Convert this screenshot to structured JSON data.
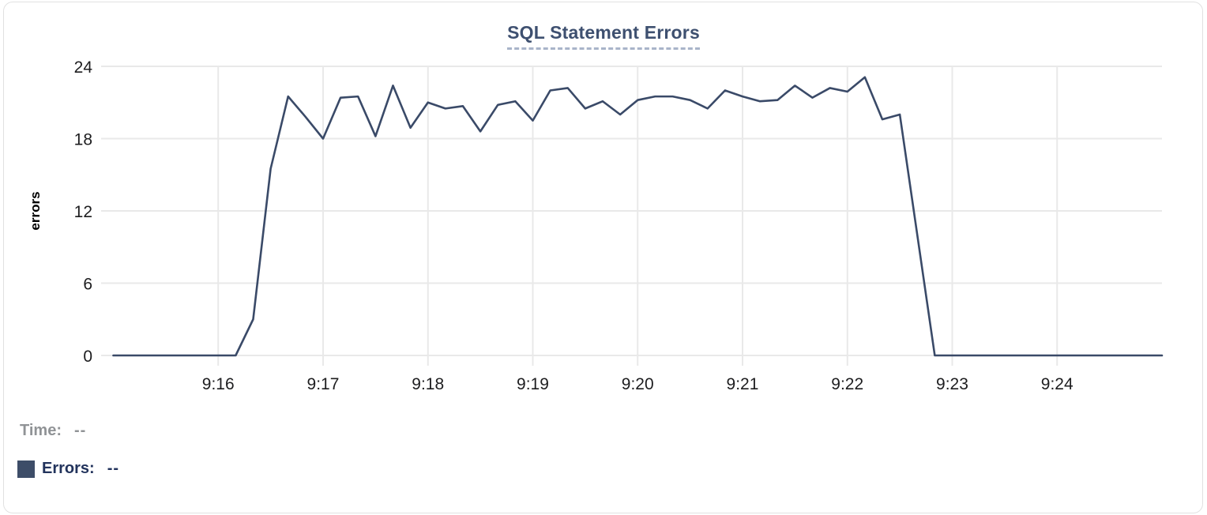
{
  "colors": {
    "line": "#3a4a68",
    "grid": "#e9e9e9",
    "axis_text": "#1d1d1f",
    "title_text": "#3e5070",
    "title_dash": "#a9b4c9",
    "card_border": "#e1e1e1",
    "time_readout_gray": "#909396",
    "errors_readout_navy": "#22335c",
    "legend_swatch": "#3d4d68",
    "ylabel_text": "#000000"
  },
  "readout": {
    "time_label": "Time:",
    "time_value": "--",
    "errors_label": "Errors:",
    "errors_value": "--"
  },
  "chart_data": {
    "type": "line",
    "title": "SQL Statement Errors",
    "xlabel": "",
    "ylabel": "errors",
    "series_name": "Errors",
    "ylim": [
      0,
      24
    ],
    "y_ticks": [
      0,
      6,
      12,
      18,
      24
    ],
    "x_tick_labels": [
      "9:16",
      "9:17",
      "9:18",
      "9:19",
      "9:20",
      "9:21",
      "9:22",
      "9:23",
      "9:24"
    ],
    "x_axis_range": [
      "9:14:53",
      "9:25:00"
    ],
    "grid": true,
    "legend_position": "bottom-left",
    "line_color": "#3a4a68",
    "x": [
      "9:15:00",
      "9:15:10",
      "9:15:20",
      "9:15:30",
      "9:15:40",
      "9:15:50",
      "9:16:00",
      "9:16:10",
      "9:16:20",
      "9:16:30",
      "9:16:40",
      "9:16:50",
      "9:17:00",
      "9:17:10",
      "9:17:20",
      "9:17:30",
      "9:17:40",
      "9:17:50",
      "9:18:00",
      "9:18:10",
      "9:18:20",
      "9:18:30",
      "9:18:40",
      "9:18:50",
      "9:19:00",
      "9:19:10",
      "9:19:20",
      "9:19:30",
      "9:19:40",
      "9:19:50",
      "9:20:00",
      "9:20:10",
      "9:20:20",
      "9:20:30",
      "9:20:40",
      "9:20:50",
      "9:21:00",
      "9:21:10",
      "9:21:20",
      "9:21:30",
      "9:21:40",
      "9:21:50",
      "9:22:00",
      "9:22:10",
      "9:22:20",
      "9:22:30",
      "9:22:40",
      "9:22:50",
      "9:23:00",
      "9:23:10",
      "9:23:20",
      "9:23:30",
      "9:23:40",
      "9:23:50",
      "9:24:00",
      "9:24:10",
      "9:24:20",
      "9:24:30",
      "9:24:40",
      "9:24:50",
      "9:25:00"
    ],
    "values": [
      0,
      0,
      0,
      0,
      0,
      0,
      0,
      0,
      3,
      15.5,
      21.5,
      19.8,
      18,
      21.4,
      21.5,
      18.2,
      22.4,
      18.9,
      21,
      20.5,
      20.7,
      18.6,
      20.8,
      21.1,
      19.5,
      22,
      22.2,
      20.5,
      21.1,
      20,
      21.2,
      21.5,
      21.5,
      21.2,
      20.5,
      22,
      21.5,
      21.1,
      21.2,
      22.4,
      21.4,
      22.2,
      21.9,
      23.1,
      19.6,
      20,
      10,
      0,
      0,
      0,
      0,
      0,
      0,
      0,
      0,
      0,
      0,
      0,
      0,
      0,
      0
    ]
  }
}
